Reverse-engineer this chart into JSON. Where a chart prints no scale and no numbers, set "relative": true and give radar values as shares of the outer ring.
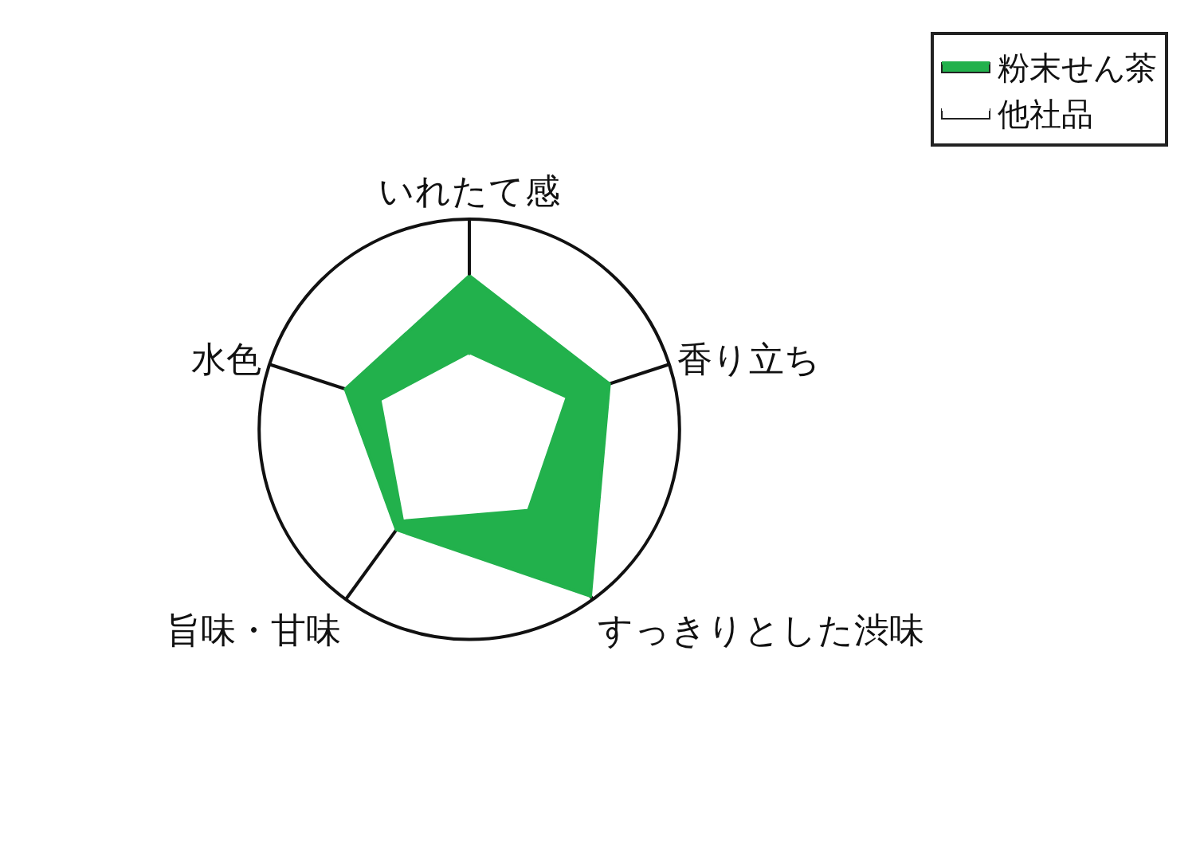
{
  "chart_data": {
    "type": "radar",
    "relative": true,
    "categories": [
      "いれたて感",
      "香り立ち",
      "すっきりとした渋味",
      "旨味・甘味",
      "水色"
    ],
    "series": [
      {
        "name": "粉末せん茶",
        "color": "#22b14c",
        "values": [
          0.73,
          0.7,
          0.98,
          0.59,
          0.62
        ]
      },
      {
        "name": "他社品",
        "color": "#ffffff",
        "values": [
          0.35,
          0.47,
          0.46,
          0.52,
          0.43
        ]
      }
    ],
    "legend": "top right",
    "grid": "x"
  }
}
